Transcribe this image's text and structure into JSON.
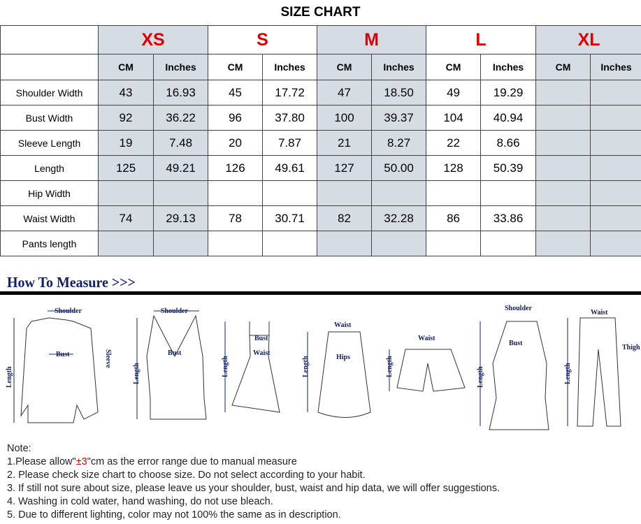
{
  "title": "SIZE CHART",
  "sizes": [
    "XS",
    "S",
    "M",
    "L",
    "XL"
  ],
  "units": [
    "CM",
    "Inches"
  ],
  "shaded_sizes": [
    "XS",
    "M",
    "XL"
  ],
  "shade_color": "#d6dce4",
  "size_color": "#e00000",
  "rows": [
    {
      "label": "Shoulder Width",
      "values": [
        "43",
        "16.93",
        "45",
        "17.72",
        "47",
        "18.50",
        "49",
        "19.29",
        "",
        ""
      ]
    },
    {
      "label": "Bust Width",
      "values": [
        "92",
        "36.22",
        "96",
        "37.80",
        "100",
        "39.37",
        "104",
        "40.94",
        "",
        ""
      ]
    },
    {
      "label": "Sleeve Length",
      "values": [
        "19",
        "7.48",
        "20",
        "7.87",
        "21",
        "8.27",
        "22",
        "8.66",
        "",
        ""
      ]
    },
    {
      "label": "Length",
      "values": [
        "125",
        "49.21",
        "126",
        "49.61",
        "127",
        "50.00",
        "128",
        "50.39",
        "",
        ""
      ]
    },
    {
      "label": "Hip Width",
      "values": [
        "",
        "",
        "",
        "",
        "",
        "",
        "",
        "",
        "",
        ""
      ]
    },
    {
      "label": "Waist Width",
      "values": [
        "74",
        "29.13",
        "78",
        "30.71",
        "82",
        "32.28",
        "86",
        "33.86",
        "",
        ""
      ]
    },
    {
      "label": "Pants length",
      "values": [
        "",
        "",
        "",
        "",
        "",
        "",
        "",
        "",
        "",
        ""
      ]
    }
  ],
  "how_to_measure": "How To Measure >>>",
  "diagram_labels": {
    "shoulder": "Shoulder",
    "bust": "Bust",
    "sleeve": "Sleeve",
    "length": "Length",
    "waist": "Waist",
    "hips": "Hips",
    "thigh": "Thigh"
  },
  "notes": {
    "heading": "Note:",
    "line1_pre": "1.Please allow\"",
    "line1_red": "±3",
    "line1_post": "\"cm as the error range due to manual measure",
    "line2": "2. Please check size chart to choose size. Do not select according to your habit.",
    "line3": "3. If still not sure about size, please leave us your shoulder, bust, waist and hip data, we will offer suggestions.",
    "line4": "4. Washing in cold water, hand washing, do not use bleach.",
    "line5": "5. Due to different lighting, color may not 100% the same as in description."
  }
}
